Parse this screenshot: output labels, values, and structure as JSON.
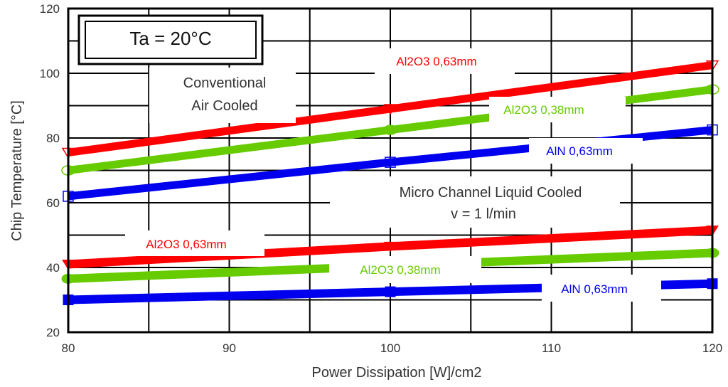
{
  "chart_data": {
    "type": "line",
    "xlabel": "Power Dissipation [W]/cm2",
    "ylabel": "Chip Temperature [°C]",
    "xlim": [
      80,
      120
    ],
    "ylim": [
      20,
      120
    ],
    "xticks": [
      80,
      90,
      100,
      110,
      120
    ],
    "yticks": [
      20,
      40,
      60,
      80,
      100,
      120
    ],
    "grid": true,
    "x": [
      80,
      100,
      120
    ],
    "condition_label": "Ta  = 20°C",
    "group_labels": {
      "air": [
        "Conventional",
        "Air Cooled"
      ],
      "liquid": [
        "Micro Channel  Liquid Cooled",
        "v = 1 l/min"
      ]
    },
    "series": [
      {
        "label": "Al2O3 0,63mm",
        "group": "air",
        "color": "#ff0000",
        "marker": "triangle-open",
        "values": [
          75.5,
          89,
          102.5
        ]
      },
      {
        "label": "Al2O3 0,38mm",
        "group": "air",
        "color": "#66cc00",
        "marker": "circle-open",
        "values": [
          70,
          82.5,
          95
        ]
      },
      {
        "label": "AlN 0,63mm",
        "group": "air",
        "color": "#0000ee",
        "marker": "square-open",
        "values": [
          62,
          72.5,
          82.5
        ]
      },
      {
        "label": "Al2O3 0,63mm",
        "group": "liquid",
        "color": "#ff0000",
        "marker": "triangle-filled",
        "values": [
          41,
          46.5,
          51.5
        ]
      },
      {
        "label": "Al2O3 0,38mm",
        "group": "liquid",
        "color": "#66cc00",
        "marker": "circle-filled",
        "values": [
          36.5,
          40.5,
          44.5
        ]
      },
      {
        "label": "AlN 0,63mm",
        "group": "liquid",
        "color": "#0000ee",
        "marker": "square-filled",
        "values": [
          30,
          32.5,
          35
        ]
      }
    ]
  }
}
